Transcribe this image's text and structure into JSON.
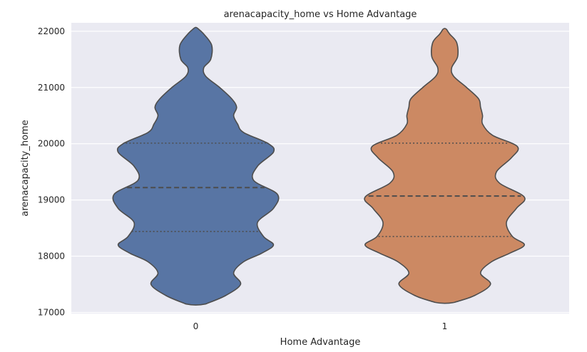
{
  "chart_data": {
    "type": "violin",
    "title": "arenacapacity_home vs Home Advantage",
    "xlabel": "Home Advantage",
    "ylabel": "arenacapacity_home",
    "categories": [
      "0",
      "1"
    ],
    "yticks": [
      17000,
      18000,
      19000,
      20000,
      21000,
      22000
    ],
    "ylim": [
      16980,
      22150
    ],
    "grid": true,
    "inner": "quartile",
    "series": [
      {
        "category": "0",
        "color": "#5875a4",
        "quartiles": {
          "q1": 18440,
          "median": 19220,
          "q3": 20010
        },
        "profile": [
          [
            17150,
            0.1
          ],
          [
            17300,
            0.3
          ],
          [
            17500,
            0.45
          ],
          [
            17700,
            0.38
          ],
          [
            17900,
            0.48
          ],
          [
            18050,
            0.66
          ],
          [
            18200,
            0.78
          ],
          [
            18350,
            0.68
          ],
          [
            18600,
            0.62
          ],
          [
            18850,
            0.78
          ],
          [
            19100,
            0.82
          ],
          [
            19350,
            0.58
          ],
          [
            19600,
            0.62
          ],
          [
            19850,
            0.78
          ],
          [
            20000,
            0.73
          ],
          [
            20200,
            0.48
          ],
          [
            20350,
            0.42
          ],
          [
            20500,
            0.38
          ],
          [
            20650,
            0.41
          ],
          [
            20800,
            0.36
          ],
          [
            21000,
            0.24
          ],
          [
            21200,
            0.1
          ],
          [
            21350,
            0.08
          ],
          [
            21500,
            0.15
          ],
          [
            21750,
            0.16
          ],
          [
            21950,
            0.08
          ],
          [
            22050,
            0.02
          ]
        ]
      },
      {
        "category": "1",
        "color": "#cc8963",
        "quartiles": {
          "q1": 18350,
          "median": 19070,
          "q3": 20010
        },
        "profile": [
          [
            17180,
            0.1
          ],
          [
            17300,
            0.3
          ],
          [
            17500,
            0.46
          ],
          [
            17700,
            0.36
          ],
          [
            17900,
            0.47
          ],
          [
            18050,
            0.65
          ],
          [
            18200,
            0.8
          ],
          [
            18350,
            0.68
          ],
          [
            18600,
            0.62
          ],
          [
            18850,
            0.72
          ],
          [
            19050,
            0.8
          ],
          [
            19300,
            0.55
          ],
          [
            19500,
            0.52
          ],
          [
            19750,
            0.67
          ],
          [
            19950,
            0.73
          ],
          [
            20150,
            0.48
          ],
          [
            20350,
            0.38
          ],
          [
            20500,
            0.38
          ],
          [
            20650,
            0.36
          ],
          [
            20800,
            0.34
          ],
          [
            21000,
            0.22
          ],
          [
            21200,
            0.09
          ],
          [
            21350,
            0.07
          ],
          [
            21550,
            0.13
          ],
          [
            21800,
            0.12
          ],
          [
            21950,
            0.05
          ],
          [
            22030,
            0.02
          ]
        ]
      }
    ]
  }
}
